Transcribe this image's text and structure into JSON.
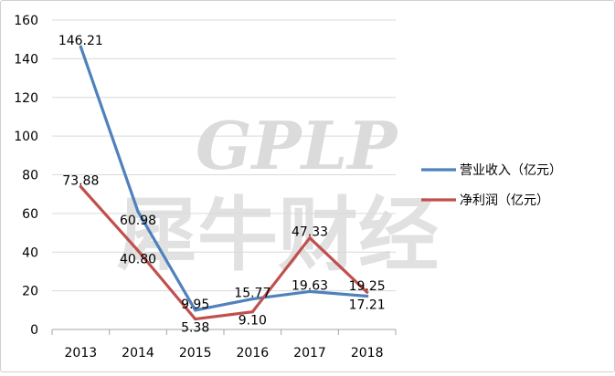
{
  "watermark": {
    "logo_text": "GPLP",
    "brand_text": "犀牛财经"
  },
  "chart_data": {
    "type": "line",
    "categories": [
      "2013",
      "2014",
      "2015",
      "2016",
      "2017",
      "2018"
    ],
    "ylim": [
      0,
      160
    ],
    "yticks": [
      0,
      20,
      40,
      60,
      80,
      100,
      120,
      140,
      160
    ],
    "grid": true,
    "legend_position": "right",
    "series": [
      {
        "name": "营业收入（亿元）",
        "color": "#4f81bd",
        "values": [
          146.21,
          60.98,
          9.95,
          15.77,
          19.63,
          17.21
        ],
        "labels": [
          "146.21",
          "60.98",
          "9.95",
          "15.77",
          "19.63",
          "17.21"
        ]
      },
      {
        "name": "净利润（亿元）",
        "color": "#c0504d",
        "values": [
          73.88,
          40.8,
          5.38,
          9.1,
          47.33,
          19.25
        ],
        "labels": [
          "73.88",
          "40.80",
          "5.38",
          "9.10",
          "47.33",
          "19.25"
        ]
      }
    ]
  }
}
